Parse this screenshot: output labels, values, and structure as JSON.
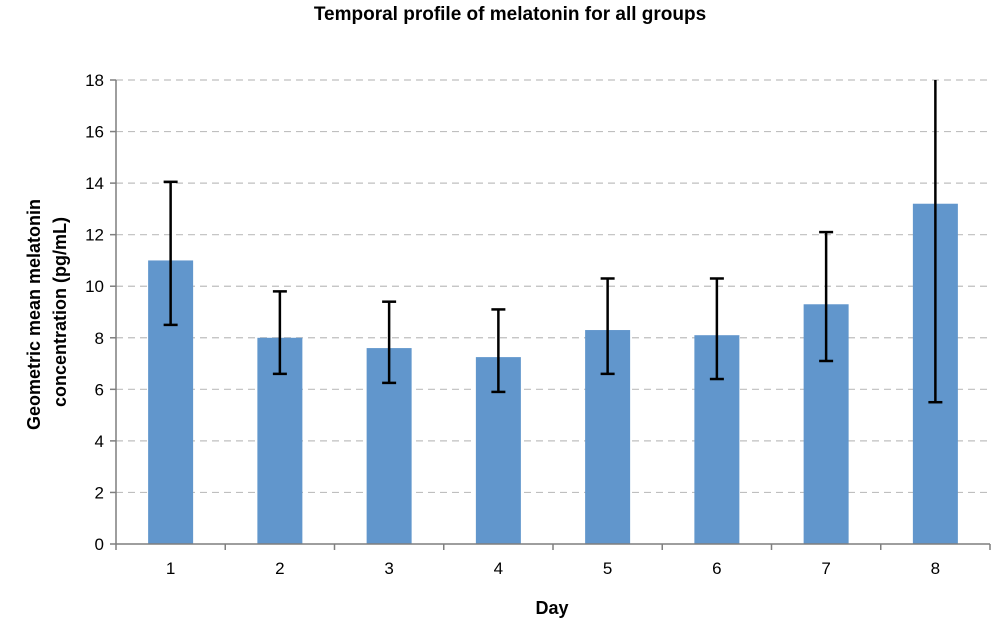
{
  "chart_data": {
    "type": "bar",
    "title": "Temporal profile of melatonin for all groups",
    "xlabel": "Day",
    "ylabel_lines": [
      "Geometric mean melatonin",
      "concentration (pg/mL)"
    ],
    "categories": [
      "1",
      "2",
      "3",
      "4",
      "5",
      "6",
      "7",
      "8"
    ],
    "values": [
      11.0,
      8.0,
      7.6,
      7.25,
      8.3,
      8.1,
      9.3,
      13.2
    ],
    "error_low": [
      8.5,
      6.6,
      6.25,
      5.9,
      6.6,
      6.4,
      7.1,
      5.5
    ],
    "error_high": [
      14.05,
      9.8,
      9.4,
      9.1,
      10.3,
      10.3,
      12.1,
      18.0
    ],
    "ylim": [
      0,
      18
    ],
    "yticks": [
      "0",
      "2",
      "4",
      "6",
      "8",
      "10",
      "12",
      "14",
      "16",
      "18"
    ],
    "grid": true,
    "bar_color": "#6196cc",
    "error_color": "#000000"
  }
}
